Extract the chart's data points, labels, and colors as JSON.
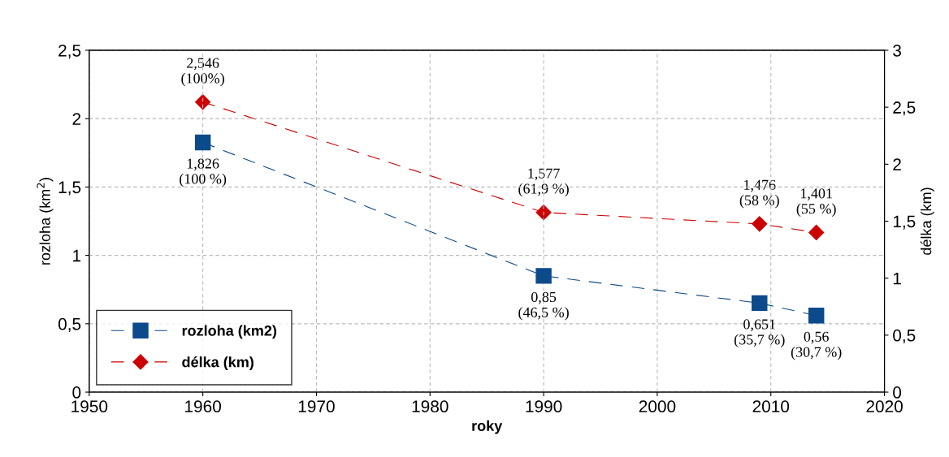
{
  "chart_data": {
    "type": "line",
    "xlabel": "roky",
    "ylabel": "rozloha (km$^{2}$)",
    "y2label": "délka (km)",
    "x": [
      1960,
      1990,
      2009,
      2014
    ],
    "series": [
      {
        "name": "rozloha (km2)",
        "color": "#0b4a8b",
        "marker": "square",
        "values": [
          1.826,
          0.85,
          0.651,
          0.56
        ],
        "value_labels": [
          "1,826\n(100 %)",
          "0,85\n(46,5 %)",
          "0,651\n(35,7 %)",
          "0,56\n(30,7 %)"
        ]
      },
      {
        "name": "délka (km)",
        "color": "#cc0000",
        "marker": "diamond",
        "axis": "y2",
        "values": [
          2.546,
          1.577,
          1.476,
          1.401
        ],
        "value_labels": [
          "2,546\n(100%)",
          "1,577\n(61,9 %)",
          "1,476\n(58 %)",
          "1,401\n(55 %)"
        ]
      }
    ],
    "xlim": [
      1950,
      2020
    ],
    "xticks": [
      1950,
      1960,
      1970,
      1980,
      1990,
      2000,
      2010,
      2020
    ],
    "ylim": [
      0,
      2.5
    ],
    "yticks": [
      0,
      {
        "value": 0.5,
        "label": "0,5"
      },
      1,
      {
        "value": 1.5,
        "label": "1,5"
      },
      2,
      {
        "value": 2.5,
        "label": "2,5"
      }
    ],
    "y2lim": [
      0,
      3
    ],
    "y2ticks": [
      0,
      {
        "value": 0.5,
        "label": "0,5"
      },
      1,
      {
        "value": 1.5,
        "label": "1,5"
      },
      2,
      {
        "value": 2.5,
        "label": "2,5"
      },
      3
    ],
    "line_style": "dashed",
    "grid": true,
    "legend": "bottom left"
  }
}
